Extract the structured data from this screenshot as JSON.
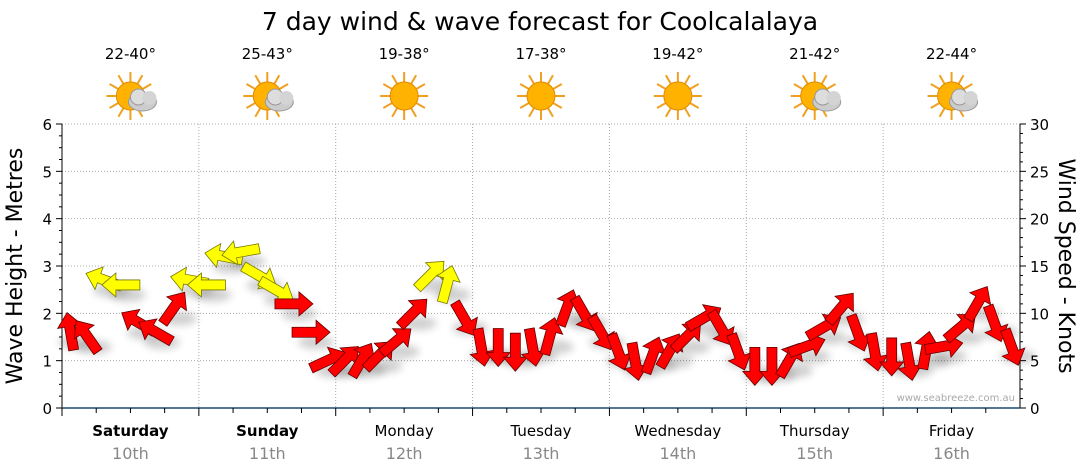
{
  "chart_data": {
    "type": "scatter",
    "title": "7 day wind & wave forecast for Coolcalalaya",
    "ylabel": "Wave Height - Metres",
    "y2label": "Wind Speed - Knots",
    "ylim": [
      0,
      6
    ],
    "y2lim": [
      0,
      30
    ],
    "yticks": [
      "0",
      "1",
      "2",
      "3",
      "4",
      "5",
      "6"
    ],
    "y2ticks": [
      "0",
      "5",
      "10",
      "15",
      "20",
      "25",
      "30"
    ],
    "grid": true,
    "watermark": "www.seabreeze.com.au",
    "days": [
      {
        "name": "Saturday",
        "date": "10th",
        "bold": true,
        "temp": "22-40°",
        "icon": "sun-cloud"
      },
      {
        "name": "Sunday",
        "date": "11th",
        "bold": true,
        "temp": "25-43°",
        "icon": "sun-cloud"
      },
      {
        "name": "Monday",
        "date": "12th",
        "bold": false,
        "temp": "19-38°",
        "icon": "sun"
      },
      {
        "name": "Tuesday",
        "date": "13th",
        "bold": false,
        "temp": "17-38°",
        "icon": "sun"
      },
      {
        "name": "Wednesday",
        "date": "14th",
        "bold": false,
        "temp": "19-42°",
        "icon": "sun"
      },
      {
        "name": "Thursday",
        "date": "15th",
        "bold": false,
        "temp": "21-42°",
        "icon": "sun-cloud"
      },
      {
        "name": "Friday",
        "date": "16th",
        "bold": false,
        "temp": "22-44°",
        "icon": "sun-cloud"
      }
    ],
    "colors": {
      "R": "#ff0000",
      "Y": "#ffff00"
    },
    "points_per_day": 8,
    "points": [
      [
        1.6,
        "R",
        -10
      ],
      [
        1.5,
        "R",
        -35
      ],
      [
        2.7,
        "Y",
        -70
      ],
      [
        2.6,
        "Y",
        -90
      ],
      [
        1.8,
        "R",
        -60
      ],
      [
        1.6,
        "R",
        -60
      ],
      [
        2.1,
        "R",
        35
      ],
      [
        2.7,
        "Y",
        -80
      ],
      [
        2.6,
        "Y",
        -90
      ],
      [
        3.2,
        "Y",
        -80
      ],
      [
        3.3,
        "Y",
        -100
      ],
      [
        2.8,
        "Y",
        120
      ],
      [
        2.5,
        "Y",
        120
      ],
      [
        2.2,
        "R",
        90
      ],
      [
        1.6,
        "R",
        90
      ],
      [
        1.0,
        "R",
        65
      ],
      [
        1.0,
        "R",
        45
      ],
      [
        1.0,
        "R",
        30
      ],
      [
        1.1,
        "R",
        45
      ],
      [
        1.4,
        "R",
        50
      ],
      [
        2.0,
        "R",
        45
      ],
      [
        2.8,
        "Y",
        45
      ],
      [
        2.6,
        "Y",
        15
      ],
      [
        1.9,
        "R",
        150
      ],
      [
        1.3,
        "R",
        170
      ],
      [
        1.3,
        "R",
        180
      ],
      [
        1.2,
        "R",
        180
      ],
      [
        1.3,
        "R",
        170
      ],
      [
        1.5,
        "R",
        15
      ],
      [
        2.1,
        "R",
        20
      ],
      [
        2.0,
        "R",
        150
      ],
      [
        1.6,
        "R",
        150
      ],
      [
        1.2,
        "R",
        160
      ],
      [
        1.0,
        "R",
        170
      ],
      [
        1.1,
        "R",
        20
      ],
      [
        1.2,
        "R",
        30
      ],
      [
        1.5,
        "R",
        45
      ],
      [
        1.9,
        "R",
        60
      ],
      [
        1.7,
        "R",
        150
      ],
      [
        1.2,
        "R",
        160
      ],
      [
        0.9,
        "R",
        180
      ],
      [
        0.9,
        "R",
        180
      ],
      [
        1.0,
        "R",
        30
      ],
      [
        1.3,
        "R",
        70
      ],
      [
        1.7,
        "R",
        60
      ],
      [
        2.1,
        "R",
        40
      ],
      [
        1.6,
        "R",
        160
      ],
      [
        1.2,
        "R",
        170
      ],
      [
        1.1,
        "R",
        180
      ],
      [
        1.0,
        "R",
        170
      ],
      [
        1.2,
        "R",
        10
      ],
      [
        1.3,
        "R",
        80
      ],
      [
        1.7,
        "R",
        50
      ],
      [
        2.2,
        "R",
        30
      ],
      [
        1.8,
        "R",
        160
      ],
      [
        1.3,
        "R",
        160
      ]
    ]
  }
}
